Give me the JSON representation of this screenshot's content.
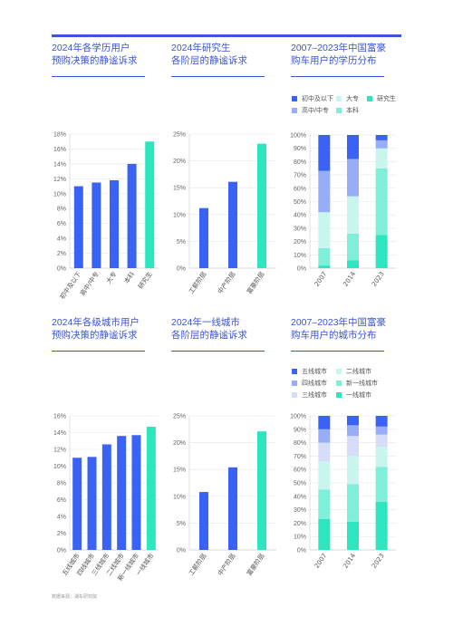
{
  "footer": "数据来源：湖车研究院",
  "colors": {
    "accent": "#3a55d9",
    "bar_blue": "#3a63f5",
    "bar_teal": "#2ce6c0"
  },
  "titles": {
    "c1": [
      "2024年各学历用户",
      "预购决策的静谧诉求"
    ],
    "c2": [
      "2024年研究生",
      "各阶层的静谧诉求"
    ],
    "c3": [
      "2007–2023年中国富豪",
      "购车用户的学历分布"
    ],
    "c4": [
      "2024年各级城市用户",
      "预购决策的静谧诉求"
    ],
    "c5": [
      "2024年一线城市",
      "各阶层的静谧诉求"
    ],
    "c6": [
      "2007–2023年中国富豪",
      "购车用户的城市分布"
    ]
  },
  "legends": {
    "edu": [
      {
        "label": "初中及以下",
        "color": "#3a63f5"
      },
      {
        "label": "大专",
        "color": "#c9f5ef"
      },
      {
        "label": "研究生",
        "color": "#2ce6c0"
      },
      {
        "label": "高中/中专",
        "color": "#98adf7"
      },
      {
        "label": "本科",
        "color": "#7ef0d8"
      }
    ],
    "city": [
      {
        "label": "五线城市",
        "color": "#3a63f5"
      },
      {
        "label": "二线城市",
        "color": "#c9f5ef"
      },
      {
        "label": "四线城市",
        "color": "#98adf7"
      },
      {
        "label": "新一线城市",
        "color": "#7ef0d8"
      },
      {
        "label": "三线城市",
        "color": "#d6ddfb"
      },
      {
        "label": "一线城市",
        "color": "#2ce6c0"
      }
    ]
  },
  "chart_data": [
    {
      "type": "bar",
      "categories": [
        "初中及以下",
        "高中/中专",
        "大专",
        "本科",
        "研究生"
      ],
      "values": [
        11.0,
        11.5,
        11.8,
        14.0,
        17.0
      ],
      "ylim": [
        0,
        18
      ],
      "yticks": [
        "0%",
        "2%",
        "4%",
        "6%",
        "8%",
        "10%",
        "12%",
        "14%",
        "16%",
        "18%"
      ],
      "highlight_last": true
    },
    {
      "type": "bar",
      "categories": [
        "工薪阶层",
        "中产阶层",
        "富豪阶层"
      ],
      "values": [
        11.2,
        16.1,
        23.2
      ],
      "ylim": [
        0,
        25
      ],
      "yticks": [
        "0%",
        "5%",
        "10%",
        "15%",
        "20%",
        "25%"
      ],
      "highlight_last": true
    },
    {
      "type": "bar",
      "stacked": true,
      "categories": [
        "2007",
        "2014",
        "2023"
      ],
      "series": [
        {
          "name": "研究生",
          "values": [
            2,
            6,
            25
          ]
        },
        {
          "name": "本科",
          "values": [
            13,
            20,
            50
          ]
        },
        {
          "name": "大专",
          "values": [
            27,
            28,
            15
          ]
        },
        {
          "name": "高中/中专",
          "values": [
            31,
            28,
            6
          ]
        },
        {
          "name": "初中及以下",
          "values": [
            27,
            18,
            4
          ]
        }
      ],
      "ylim": [
        0,
        100
      ],
      "yticks": [
        "0%",
        "10%",
        "20%",
        "30%",
        "40%",
        "50%",
        "60%",
        "70%",
        "80%",
        "90%",
        "100%"
      ]
    },
    {
      "type": "bar",
      "categories": [
        "五线城市",
        "四线城市",
        "三线城市",
        "二线城市",
        "新一线城市",
        "一线城市"
      ],
      "values": [
        11.0,
        11.1,
        12.6,
        13.6,
        13.7,
        14.7
      ],
      "ylim": [
        0,
        16
      ],
      "yticks": [
        "0%",
        "2%",
        "4%",
        "6%",
        "8%",
        "10%",
        "12%",
        "14%",
        "16%"
      ],
      "highlight_last": true
    },
    {
      "type": "bar",
      "categories": [
        "工薪阶层",
        "中产阶层",
        "富豪阶层"
      ],
      "values": [
        10.8,
        15.4,
        22.1
      ],
      "ylim": [
        0,
        25
      ],
      "yticks": [
        "0%",
        "5%",
        "10%",
        "15%",
        "20%",
        "25%"
      ],
      "highlight_last": true
    },
    {
      "type": "bar",
      "stacked": true,
      "categories": [
        "2007",
        "2014",
        "2023"
      ],
      "series": [
        {
          "name": "一线城市",
          "values": [
            23,
            21,
            36
          ]
        },
        {
          "name": "新一线城市",
          "values": [
            22,
            28,
            26
          ]
        },
        {
          "name": "二线城市",
          "values": [
            21,
            21,
            15
          ]
        },
        {
          "name": "三线城市",
          "values": [
            14,
            15,
            9
          ]
        },
        {
          "name": "四线城市",
          "values": [
            10,
            8,
            6
          ]
        },
        {
          "name": "五线城市",
          "values": [
            10,
            7,
            8
          ]
        }
      ],
      "ylim": [
        0,
        100
      ],
      "yticks": [
        "0%",
        "10%",
        "20%",
        "30%",
        "40%",
        "50%",
        "60%",
        "70%",
        "80%",
        "90%",
        "100%"
      ]
    }
  ]
}
